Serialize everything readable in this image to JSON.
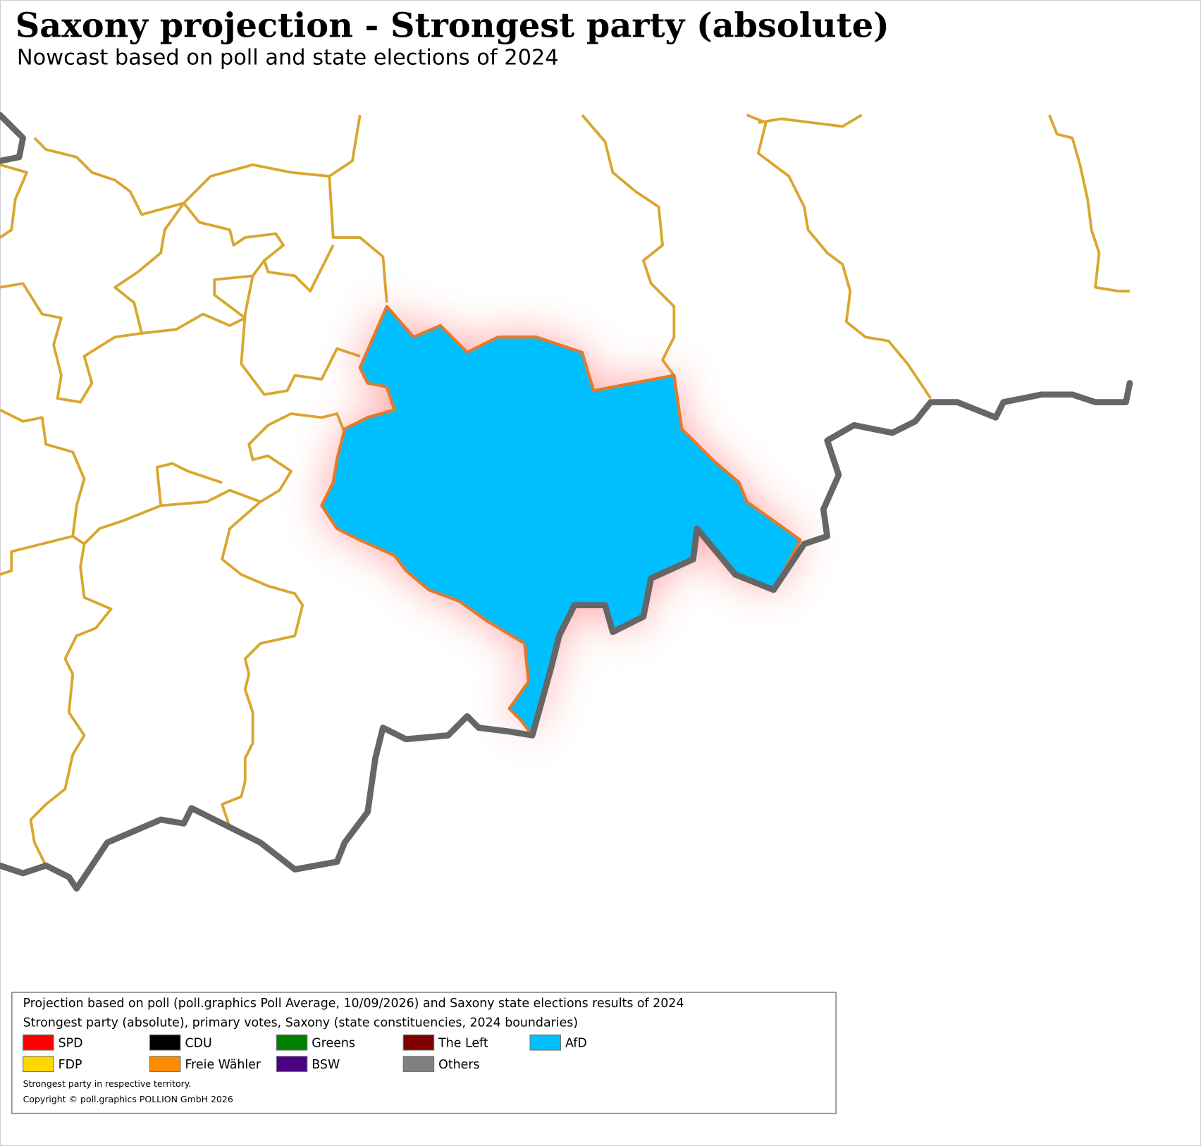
{
  "header": {
    "title": "Saxony projection - Strongest party (absolute)",
    "subtitle": "Nowcast based on poll and state elections of 2024"
  },
  "legend": {
    "lines": [
      "Projection based on poll (poll.graphics Poll Average, 10/09/2026) and Saxony state elections results of 2024",
      "Strongest party (absolute), primary votes, Saxony (state constituencies, 2024 boundaries)"
    ],
    "items": [
      {
        "name": "SPD",
        "color": "#ff0000"
      },
      {
        "name": "CDU",
        "color": "#000000"
      },
      {
        "name": "Greens",
        "color": "#008000"
      },
      {
        "name": "The Left",
        "color": "#800000"
      },
      {
        "name": "AfD",
        "color": "#00bfff"
      },
      {
        "name": "FDP",
        "color": "#ffd700"
      },
      {
        "name": "Freie Wähler",
        "color": "#ff8c00"
      },
      {
        "name": "BSW",
        "color": "#4b0082"
      },
      {
        "name": "Others",
        "color": "#808080"
      }
    ],
    "notes": [
      "Strongest party in respective territory.",
      "Copyright © poll.graphics POLLION GmbH 2026"
    ]
  },
  "map": {
    "highlight_color": "#00bfff"
  }
}
